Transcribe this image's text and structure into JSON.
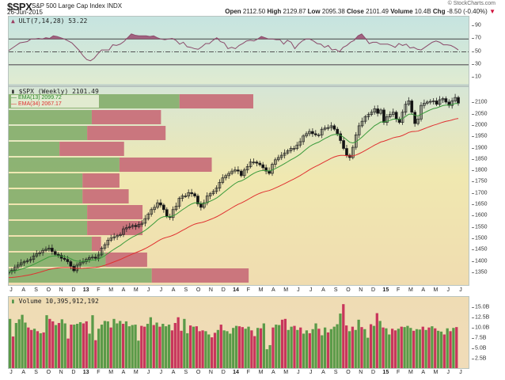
{
  "header": {
    "symbol": "$SPX",
    "name": "S&P 500 Large Cap Index INDX",
    "date": "26-Jun-2015",
    "brand": "© StockCharts.com",
    "stats": [
      {
        "label": "Open",
        "value": "2112.50"
      },
      {
        "label": "High",
        "value": "2129.87"
      },
      {
        "label": "Low",
        "value": "2095.38"
      },
      {
        "label": "Close",
        "value": "2101.49"
      },
      {
        "label": "Volume",
        "value": "10.4B"
      },
      {
        "label": "Chg",
        "value": "-8.50 (-0.40%)"
      }
    ],
    "chg_direction_icon": "▼"
  },
  "colors": {
    "up_volume": "#5a9a48",
    "down_volume": "#c8365c",
    "vbp_up": "#88b070",
    "vbp_down": "#c8707a",
    "ema13": "#3a9a3a",
    "ema34": "#e03030",
    "ult_line": "#8a4a6a",
    "ult_fill": "#9a4a70"
  },
  "chart_data": [
    {
      "type": "line",
      "title": "ULT(7,14,28) 53.22",
      "indicator": "Ultimate Oscillator",
      "params": [
        7,
        14,
        28
      ],
      "last_value": 53.22,
      "ylim": [
        0,
        100
      ],
      "yticks": [
        10,
        30,
        50,
        70,
        90
      ],
      "reference_lines": [
        {
          "value": 70,
          "style": "solid"
        },
        {
          "value": 50,
          "style": "dash-dot"
        },
        {
          "value": 30,
          "style": "solid"
        }
      ],
      "series": [
        {
          "name": "ULT",
          "values": [
            52,
            56,
            60,
            64,
            65,
            66,
            70,
            70,
            71,
            70,
            72,
            71,
            75,
            74,
            72,
            70,
            67,
            64,
            58,
            52,
            44,
            38,
            36,
            40,
            47,
            53,
            53,
            53,
            61,
            60,
            62,
            66,
            72,
            78,
            76,
            75,
            75,
            75,
            74,
            75,
            72,
            70,
            69,
            70,
            71,
            68,
            62,
            65,
            58,
            57,
            55,
            54,
            58,
            63,
            63,
            68,
            72,
            66,
            64,
            55,
            57,
            55,
            60,
            63,
            67,
            68,
            67,
            70,
            74,
            72,
            70,
            70,
            69,
            69,
            62,
            68,
            65,
            55,
            62,
            67,
            70,
            70,
            67,
            63,
            62,
            57,
            60,
            53,
            54,
            50,
            57,
            60,
            65,
            68,
            75,
            78,
            71,
            63,
            65,
            65,
            62,
            62,
            62,
            60,
            57,
            63,
            60,
            62,
            56,
            57,
            54,
            53,
            57,
            61,
            65,
            67,
            65,
            61,
            61,
            60,
            57,
            53
          ]
        }
      ]
    },
    {
      "type": "candlestick",
      "title": "$SPX (Weekly) 2101.49",
      "ylim": [
        1325,
        2150
      ],
      "yticks": [
        1350,
        1400,
        1450,
        1500,
        1550,
        1600,
        1650,
        1700,
        1750,
        1800,
        1850,
        1900,
        1950,
        2000,
        2050,
        2100
      ],
      "legend": [
        {
          "name": "EMA(13)",
          "value": "2099.72",
          "color": "#3a9a3a"
        },
        {
          "name": "EMA(34)",
          "value": "2067.17",
          "color": "#e03030"
        }
      ],
      "x_tick_labels": [
        "J",
        "A",
        "S",
        "O",
        "N",
        "D",
        "13",
        "F",
        "M",
        "A",
        "M",
        "J",
        "J",
        "A",
        "S",
        "O",
        "N",
        "D",
        "14",
        "F",
        "M",
        "A",
        "M",
        "J",
        "J",
        "A",
        "S",
        "O",
        "N",
        "D",
        "15",
        "F",
        "M",
        "A",
        "M",
        "J",
        "J"
      ],
      "close_series": [
        1355,
        1362,
        1375,
        1385,
        1395,
        1400,
        1405,
        1410,
        1425,
        1435,
        1440,
        1450,
        1455,
        1460,
        1445,
        1432,
        1428,
        1415,
        1410,
        1400,
        1380,
        1360,
        1385,
        1395,
        1400,
        1410,
        1418,
        1420,
        1415,
        1430,
        1460,
        1475,
        1495,
        1505,
        1510,
        1515,
        1520,
        1545,
        1550,
        1555,
        1560,
        1555,
        1565,
        1570,
        1590,
        1610,
        1630,
        1640,
        1660,
        1650,
        1630,
        1600,
        1595,
        1630,
        1645,
        1680,
        1690,
        1690,
        1705,
        1700,
        1690,
        1655,
        1640,
        1660,
        1690,
        1700,
        1710,
        1725,
        1750,
        1770,
        1780,
        1790,
        1800,
        1805,
        1800,
        1780,
        1805,
        1820,
        1840,
        1840,
        1835,
        1828,
        1815,
        1800,
        1790,
        1830,
        1850,
        1860,
        1870,
        1880,
        1890,
        1900,
        1900,
        1915,
        1930,
        1955,
        1965,
        1975,
        1965,
        1960,
        1960,
        1985,
        1990,
        1992,
        2000,
        1985,
        1965,
        1935,
        1900,
        1870,
        1860,
        1905,
        1960,
        2000,
        2020,
        2040,
        2050,
        2060,
        2075,
        2055,
        2070,
        2015,
        2040,
        2050,
        2060,
        2030,
        2015,
        2060,
        2095,
        2110,
        2060,
        2010,
        2030,
        2090,
        2100,
        2105,
        2108,
        2110,
        2095,
        2115,
        2120,
        2105,
        2090,
        2110,
        2125,
        2100
      ],
      "ema13_last": 2099.72,
      "ema34_last": 2067.17,
      "volume_by_price": [
        {
          "price_band": "2050-2130",
          "up": 0.37,
          "down": 0.16
        },
        {
          "price_band": "1985-2050",
          "up": 0.18,
          "down": 0.15
        },
        {
          "price_band": "1920-1985",
          "up": 0.17,
          "down": 0.17
        },
        {
          "price_band": "1855-1920",
          "up": 0.11,
          "down": 0.14
        },
        {
          "price_band": "1790-1855",
          "up": 0.24,
          "down": 0.2
        },
        {
          "price_band": "1725-1790",
          "up": 0.16,
          "down": 0.08
        },
        {
          "price_band": "1660-1725",
          "up": 0.16,
          "down": 0.1
        },
        {
          "price_band": "1595-1660",
          "up": 0.17,
          "down": 0.12
        },
        {
          "price_band": "1530-1595",
          "up": 0.17,
          "down": 0.12
        },
        {
          "price_band": "1465-1530",
          "up": 0.18,
          "down": 0.02
        },
        {
          "price_band": "1400-1465",
          "up": 0.21,
          "down": 0.09
        },
        {
          "price_band": "1335-1400",
          "up": 0.31,
          "down": 0.21
        }
      ]
    },
    {
      "type": "bar",
      "title": "Volume 10,395,912,192",
      "ylabel": "Volume",
      "ylim": [
        0,
        17.0
      ],
      "yticks": [
        "2.5B",
        "5.0B",
        "7.5B",
        "10.0B",
        "12.5B",
        "15.0B"
      ],
      "x_tick_labels": [
        "J",
        "A",
        "S",
        "O",
        "N",
        "D",
        "13",
        "F",
        "M",
        "A",
        "M",
        "J",
        "J",
        "A",
        "S",
        "O",
        "N",
        "D",
        "14",
        "F",
        "M",
        "A",
        "M",
        "J",
        "J",
        "A",
        "S",
        "O",
        "N",
        "D",
        "15",
        "F",
        "M",
        "A",
        "M",
        "J",
        "J"
      ],
      "values_billions": [
        12.4,
        8.1,
        11.4,
        12.3,
        13.4,
        11.5,
        10.3,
        9.7,
        10.0,
        9.4,
        8.9,
        9.1,
        13.3,
        12.4,
        11.8,
        10.9,
        11.4,
        12.3,
        11.3,
        7.6,
        11.0,
        11.0,
        11.2,
        11.6,
        11.3,
        11.8,
        8.8,
        13.3,
        7.2,
        10.0,
        11.0,
        11.9,
        11.8,
        10.3,
        12.4,
        11.3,
        11.9,
        11.2,
        11.8,
        10.6,
        10.9,
        11.0,
        7.1,
        10.7,
        10.5,
        11.2,
        12.8,
        10.9,
        11.5,
        10.5,
        11.2,
        10.6,
        11.0,
        9.6,
        11.4,
        12.8,
        9.5,
        12.4,
        8.9,
        10.8,
        10.5,
        10.6,
        9.4,
        9.6,
        9.4,
        8.6,
        7.9,
        9.0,
        9.7,
        11.0,
        9.6,
        9.4,
        8.8,
        10.2,
        10.7,
        10.6,
        10.4,
        10.0,
        10.5,
        9.6,
        8.2,
        10.2,
        10.1,
        11.3,
        5.0,
        6.0,
        10.3,
        11.0,
        10.9,
        12.2,
        12.4,
        9.7,
        10.5,
        10.7,
        9.7,
        10.3,
        8.8,
        9.6,
        8.9,
        9.9,
        11.3,
        10.0,
        8.4,
        10.3,
        9.1,
        9.9,
        10.5,
        11.1,
        13.7,
        16.0,
        10.8,
        9.4,
        10.5,
        9.7,
        12.2,
        10.4,
        9.9,
        7.8,
        11.1,
        10.7,
        13.8,
        11.9,
        10.3,
        10.1,
        8.6,
        10.0,
        9.6,
        10.0,
        10.5,
        10.4,
        10.7,
        10.2,
        9.5,
        9.9,
        9.8,
        10.5,
        9.7,
        10.3,
        10.6,
        10.1,
        9.5,
        9.3,
        8.6,
        10.1,
        9.4,
        10.2,
        10.4
      ],
      "is_up": [
        true,
        false,
        true,
        true,
        true,
        true,
        false,
        false,
        true,
        false,
        true,
        false,
        true,
        false,
        false,
        true,
        false,
        true,
        true,
        false,
        false,
        true,
        true,
        true,
        false,
        false,
        true,
        true,
        false,
        true,
        true,
        true,
        true,
        false,
        true,
        true,
        true,
        false,
        true,
        true,
        true,
        true,
        true,
        false,
        false,
        true,
        true,
        false,
        true,
        false,
        true,
        true,
        true,
        false,
        false,
        false,
        false,
        true,
        true,
        false,
        true,
        false,
        false,
        false,
        true,
        true,
        false,
        false,
        true,
        false,
        true,
        true,
        true,
        true,
        true,
        false,
        false,
        true,
        true,
        false,
        false,
        true,
        false,
        true,
        true,
        true,
        false,
        true,
        true,
        false,
        false,
        true,
        true,
        false,
        true,
        false,
        true,
        true,
        false,
        true,
        true,
        false,
        true,
        true,
        false,
        true,
        true,
        true,
        true,
        false,
        false,
        true,
        false,
        true,
        true,
        false,
        true,
        true,
        false,
        true,
        false,
        true,
        false,
        true,
        true,
        false,
        false,
        true,
        false,
        true,
        true,
        true,
        false,
        true,
        true,
        false,
        true,
        false,
        true,
        false,
        true,
        true,
        false,
        true,
        false,
        true,
        false
      ]
    }
  ],
  "panels": {
    "ult": {
      "label": "ULT(7,14,28) 53.22",
      "icon": "oscillator-icon"
    },
    "price": {
      "label": "$SPX (Weekly) 2101.49",
      "ema13_label": "EMA(13) 2099.72",
      "ema34_label": "EMA(34) 2067.17"
    },
    "volume": {
      "label": "Volume 10,395,912,192"
    }
  }
}
